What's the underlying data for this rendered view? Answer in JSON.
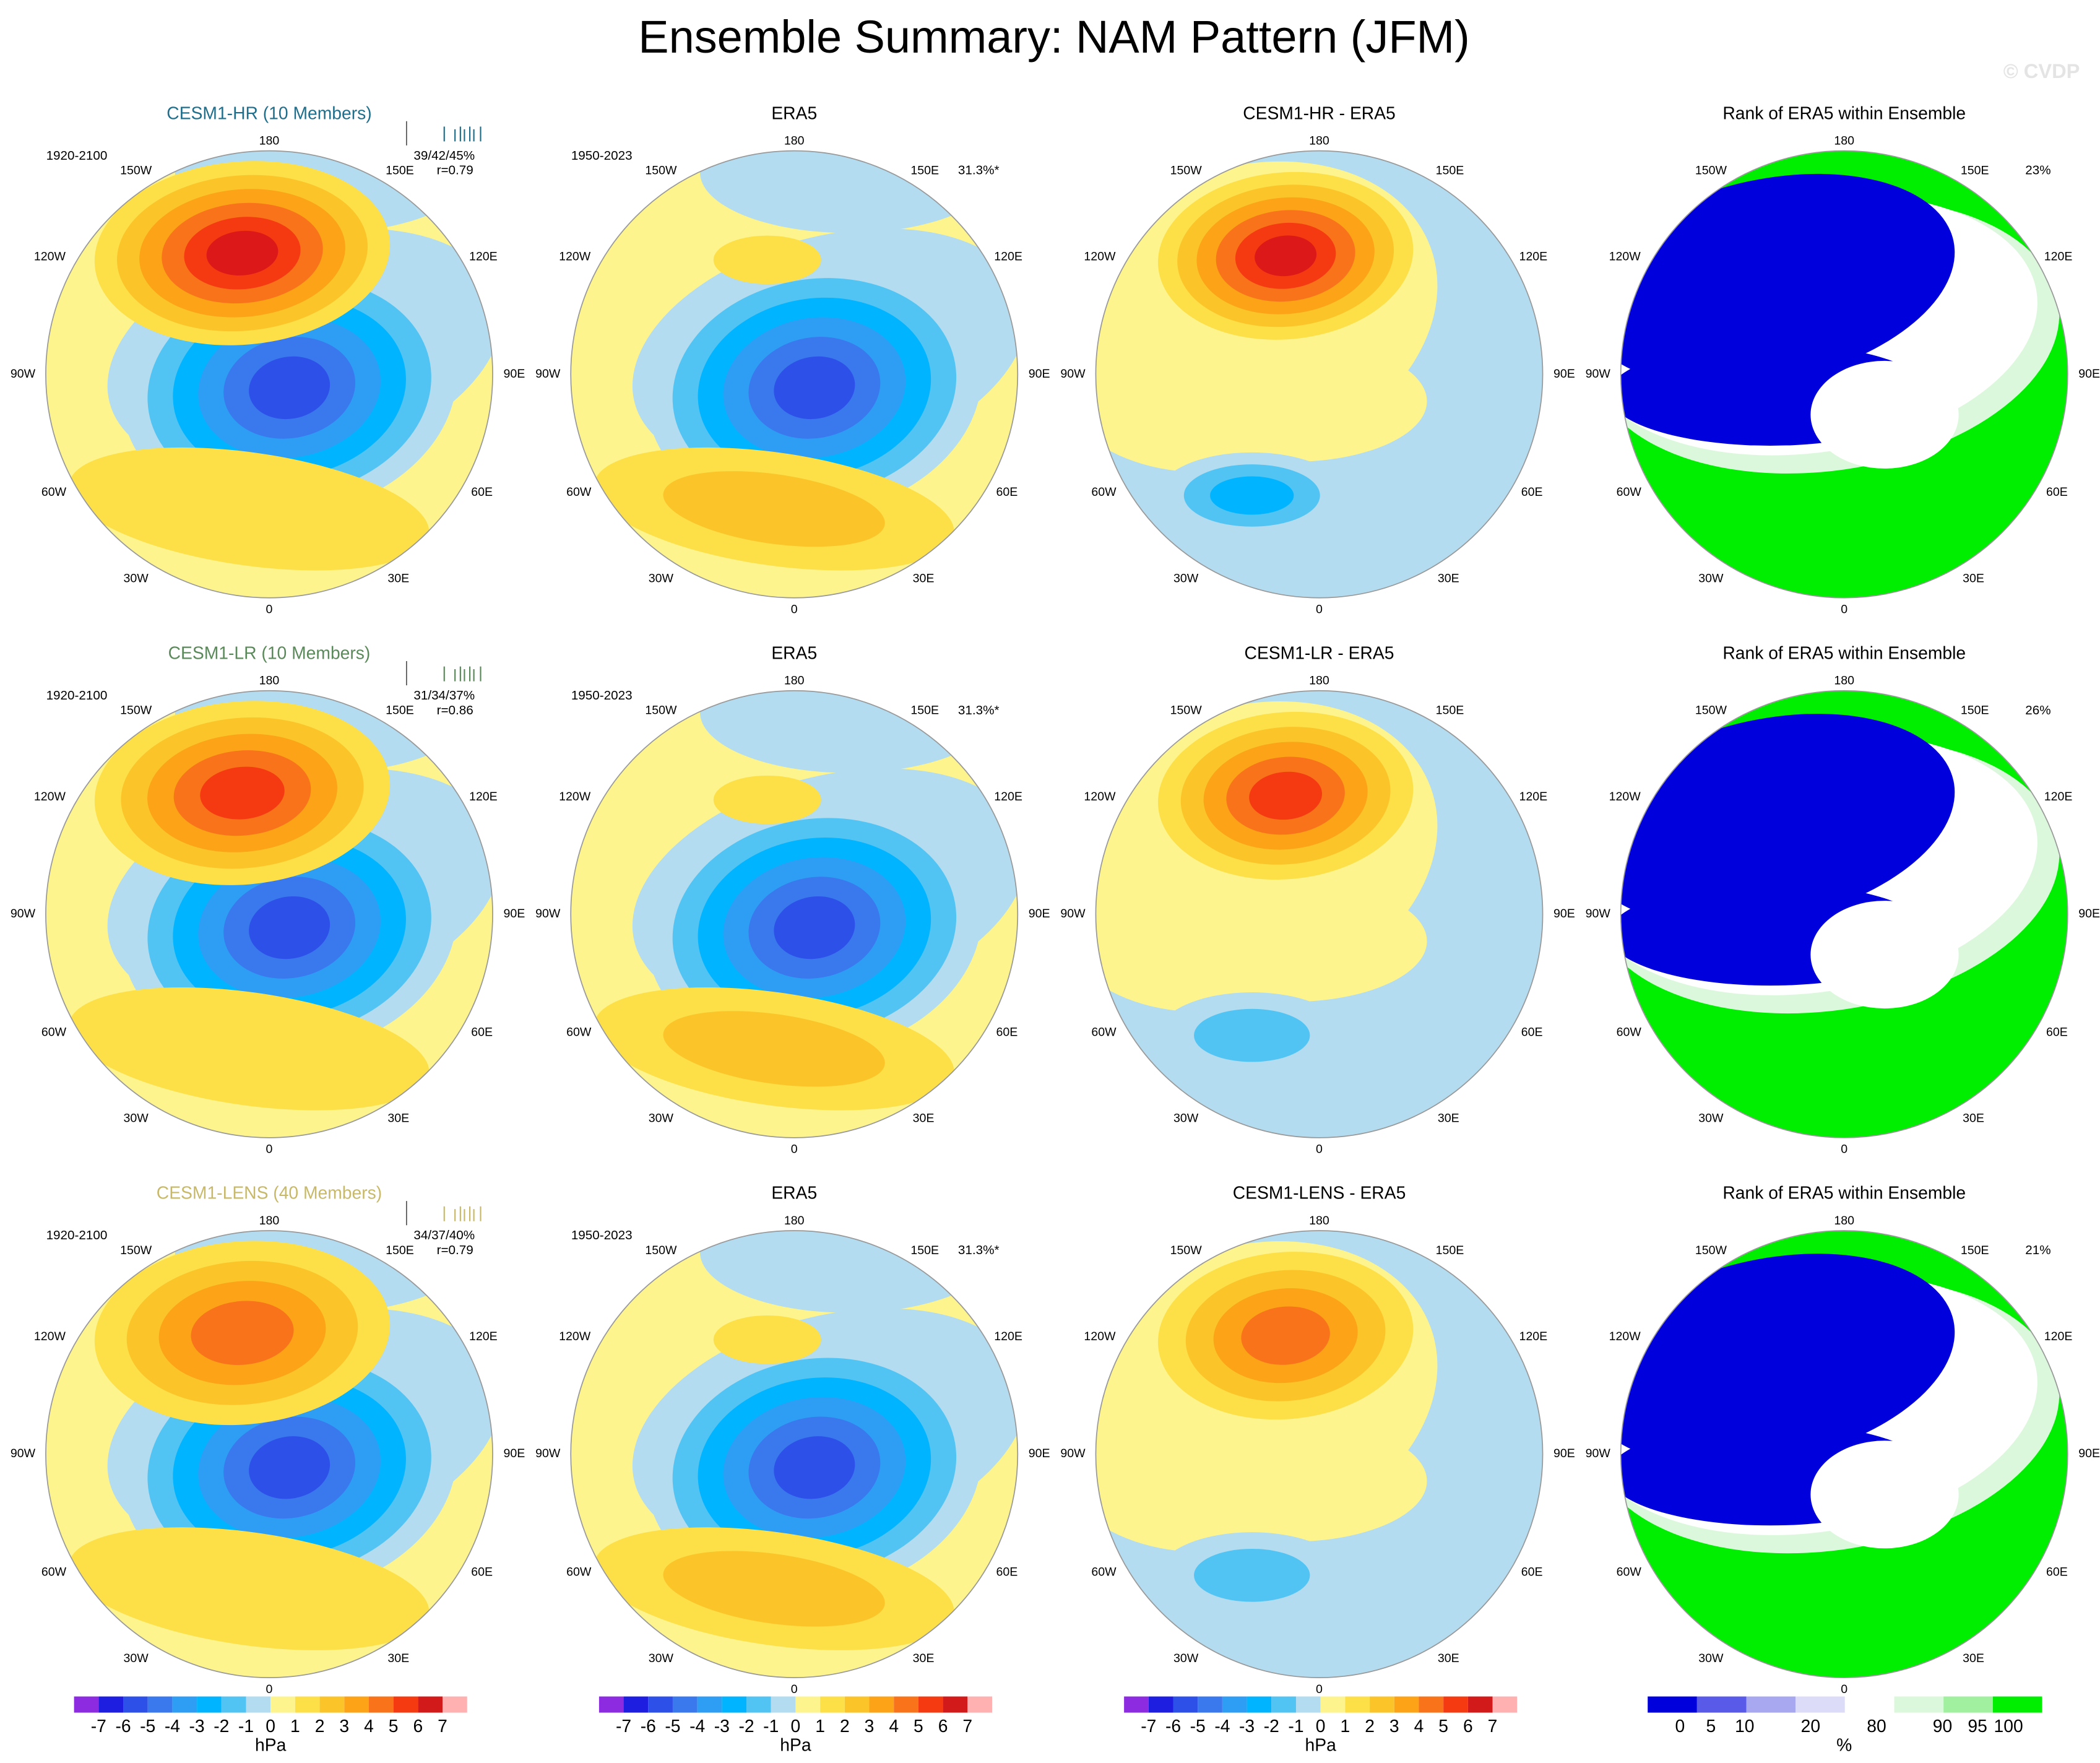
{
  "title": "Ensemble Summary: NAM Pattern (JFM)",
  "watermark": "© CVDP",
  "lon_labels": [
    "180",
    "150W",
    "150E",
    "120W",
    "120E",
    "90W",
    "90E",
    "60W",
    "60E",
    "30W",
    "30E",
    "0"
  ],
  "rows": [
    [
      {
        "title": "CESM1-HR (10 Members)",
        "period": "1920-2100",
        "stats": "39/42/45%",
        "corr": "r=0.79"
      },
      {
        "title": "ERA5",
        "period": "1950-2023",
        "pct": "31.3%*"
      },
      {
        "title": "CESM1-HR - ERA5"
      },
      {
        "title": "Rank of ERA5 within Ensemble",
        "pct": "23%"
      }
    ],
    [
      {
        "title": "CESM1-LR (10 Members)",
        "period": "1920-2100",
        "stats": "31/34/37%",
        "corr": "r=0.86"
      },
      {
        "title": "ERA5",
        "period": "1950-2023",
        "pct": "31.3%*"
      },
      {
        "title": "CESM1-LR - ERA5"
      },
      {
        "title": "Rank of ERA5 within Ensemble",
        "pct": "26%"
      }
    ],
    [
      {
        "title": "CESM1-LENS (40 Members)",
        "period": "1920-2100",
        "stats": "34/37/40%",
        "corr": "r=0.79"
      },
      {
        "title": "ERA5",
        "period": "1950-2023",
        "pct": "31.3%*"
      },
      {
        "title": "CESM1-LENS - ERA5"
      },
      {
        "title": "Rank of ERA5 within Ensemble",
        "pct": "21%"
      }
    ]
  ],
  "colorbars": [
    {
      "labels": [
        -7,
        -6,
        -5,
        -4,
        -3,
        -2,
        -1,
        0,
        1,
        2,
        3,
        4,
        5,
        6,
        7
      ],
      "unit": "hPa"
    },
    {
      "labels": [
        -7,
        -6,
        -5,
        -4,
        -3,
        -2,
        -1,
        0,
        1,
        2,
        3,
        4,
        5,
        6,
        7
      ],
      "unit": "hPa"
    },
    {
      "labels": [
        -7,
        -6,
        -5,
        -4,
        -3,
        -2,
        -1,
        0,
        1,
        2,
        3,
        4,
        5,
        6,
        7
      ],
      "unit": "hPa"
    },
    {
      "labels": [
        0,
        5,
        10,
        20,
        80,
        90,
        95,
        100
      ],
      "unit": "%"
    }
  ]
}
